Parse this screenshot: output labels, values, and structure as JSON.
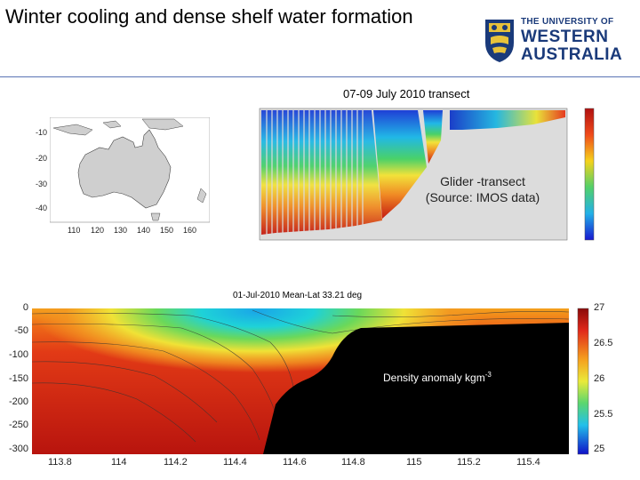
{
  "slide": {
    "title": "Winter cooling and dense shelf water formation",
    "logo": {
      "line1": "THE UNIVERSITY OF",
      "line2": "WESTERN",
      "line3": "AUSTRALIA"
    }
  },
  "map": {
    "y_ticks": [
      "-10",
      "-20",
      "-30",
      "-40"
    ],
    "x_ticks": [
      "110",
      "120",
      "130",
      "140",
      "150",
      "160"
    ]
  },
  "glider": {
    "title": "07-09 July 2010 transect",
    "note_line1": "Glider -transect",
    "note_line2": "(Source: IMOS data)"
  },
  "section": {
    "title": "01-Jul-2010  Mean-Lat 33.21 deg",
    "annotation": "Density anomaly kgm",
    "annotation_sup": "-3",
    "y_ticks": [
      "0",
      "-50",
      "-100",
      "-150",
      "-200",
      "-250",
      "-300"
    ],
    "x_ticks": [
      "113.8",
      "114",
      "114.2",
      "114.4",
      "114.6",
      "114.8",
      "115",
      "115.2",
      "115.4"
    ],
    "colorbar_ticks": [
      "27",
      "26.5",
      "26",
      "25.5",
      "25"
    ]
  },
  "colors": {
    "rule": "#5a74b4",
    "logo_blue": "#1a3a7a",
    "bathymetry": "#000000"
  }
}
